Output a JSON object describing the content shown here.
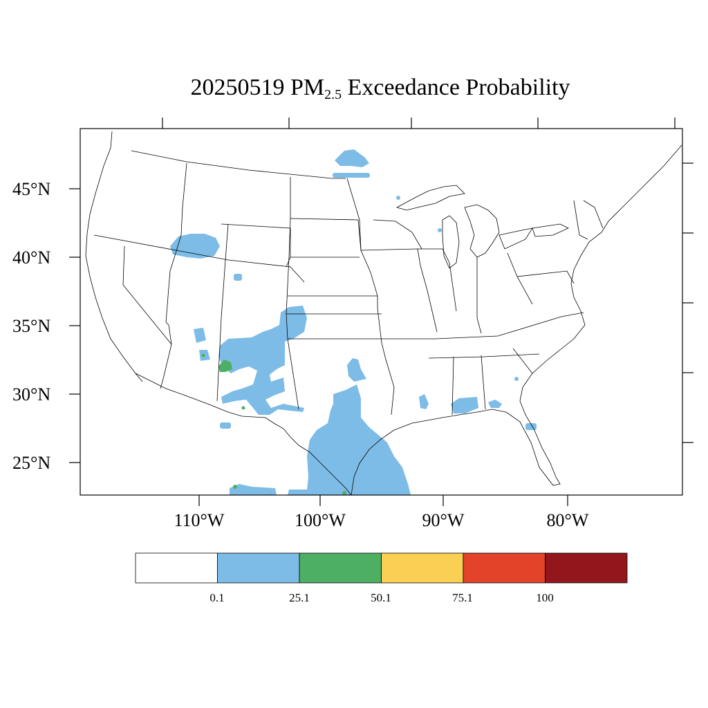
{
  "title": {
    "date": "20250519",
    "pollutant": "PM",
    "pollutant_sub": "2.5",
    "suffix": "Exceedance Probability"
  },
  "axes": {
    "lat_labels": [
      "45°N",
      "40°N",
      "35°N",
      "30°N",
      "25°N"
    ],
    "lon_labels": [
      "110°W",
      "100°W",
      "90°W",
      "80°W"
    ]
  },
  "colorbar": {
    "colors": [
      "#ffffff",
      "#7dbce6",
      "#4caf64",
      "#f9d054",
      "#e34329",
      "#93161c"
    ],
    "tick_labels": [
      "0.1",
      "25.1",
      "50.1",
      "75.1",
      "100"
    ]
  },
  "legend_meaning": {
    "white": "below 0.1",
    "blue": "0.1 - 25.1",
    "green": "25.1 - 50.1"
  }
}
